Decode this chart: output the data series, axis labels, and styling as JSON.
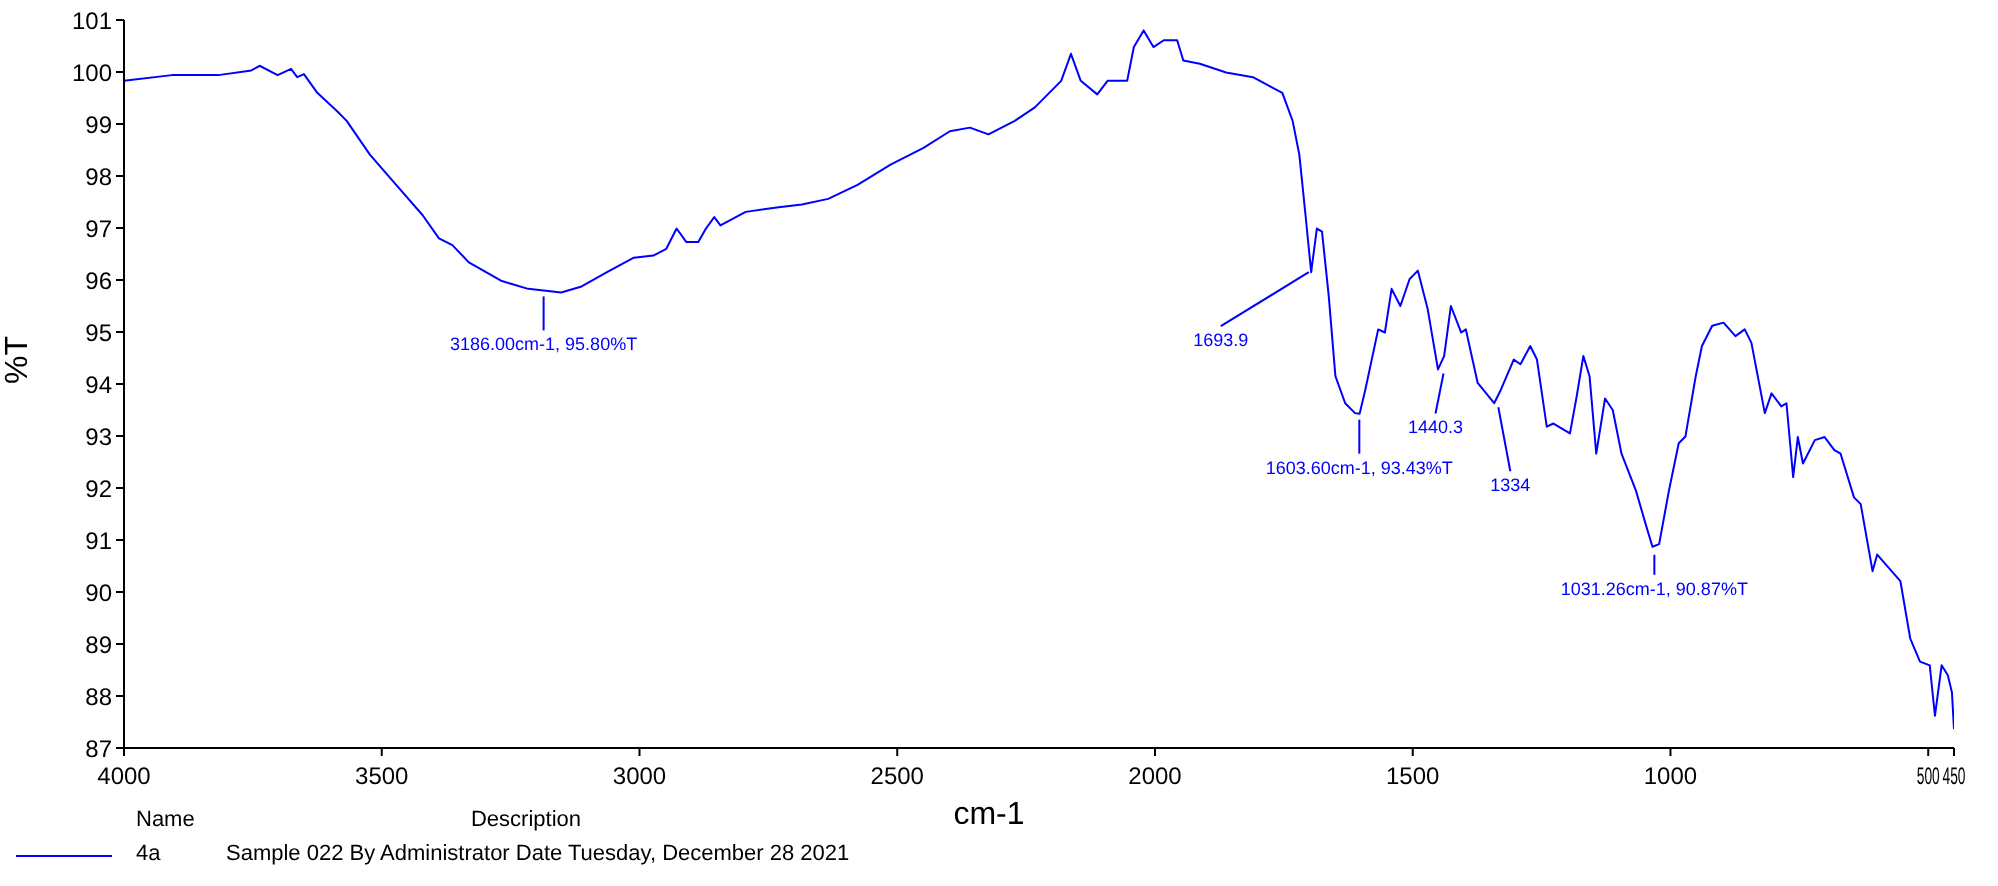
{
  "chart_data": {
    "type": "line",
    "xlabel": "cm-1",
    "ylabel": "%T",
    "xlim": [
      4000,
      450
    ],
    "xticks": [
      4000,
      3500,
      3000,
      2500,
      2000,
      1500,
      1000,
      500,
      450
    ],
    "ylim": [
      87,
      101
    ],
    "yticks": [
      87,
      88,
      89,
      90,
      91,
      92,
      93,
      94,
      95,
      96,
      97,
      98,
      99,
      100,
      101
    ],
    "grid": false,
    "legend": "bottom left",
    "marker": "none",
    "line_style": "solid",
    "x": [
      4000,
      3907,
      3817,
      3753,
      3737,
      3702,
      3676,
      3664,
      3651,
      3625,
      3587,
      3568,
      3523,
      3472,
      3421,
      3389,
      3363,
      3331,
      3267,
      3216,
      3186,
      3152,
      3114,
      3063,
      3011,
      2973,
      2948,
      2928,
      2909,
      2886,
      2871,
      2855,
      2843,
      2794,
      2730,
      2685,
      2634,
      2577,
      2513,
      2449,
      2398,
      2359,
      2323,
      2272,
      2233,
      2208,
      2182,
      2163,
      2144,
      2112,
      2092,
      2054,
      2041,
      2022,
      2003,
      1983,
      1957,
      1945,
      1913,
      1862,
      1810,
      1753,
      1733,
      1720,
      1708,
      1697,
      1686,
      1676,
      1663,
      1650,
      1631,
      1612,
      1603,
      1592,
      1567,
      1554,
      1541,
      1524,
      1506,
      1490,
      1471,
      1451,
      1439,
      1426,
      1406,
      1397,
      1374,
      1342,
      1329,
      1304,
      1291,
      1272,
      1259,
      1240,
      1227,
      1195,
      1182,
      1169,
      1157,
      1144,
      1127,
      1112,
      1095,
      1067,
      1048,
      1035,
      1022,
      1003,
      984,
      971,
      951,
      939,
      919,
      897,
      874,
      856,
      843,
      817,
      804,
      785,
      775,
      762,
      753,
      743,
      720,
      701,
      682,
      670,
      644,
      631,
      608,
      599,
      554,
      535,
      516,
      497,
      487,
      474,
      462,
      454,
      450
    ],
    "series": [
      {
        "name": "4a",
        "color": "#0000ff",
        "values": [
          99.83,
          99.94,
          99.94,
          100.03,
          100.12,
          99.94,
          100.06,
          99.9,
          99.96,
          99.6,
          99.25,
          99.06,
          98.41,
          97.83,
          97.25,
          96.8,
          96.67,
          96.34,
          95.98,
          95.83,
          95.8,
          95.76,
          95.87,
          96.15,
          96.43,
          96.47,
          96.6,
          96.99,
          96.73,
          96.73,
          96.99,
          97.21,
          97.05,
          97.31,
          97.4,
          97.45,
          97.56,
          97.83,
          98.22,
          98.54,
          98.86,
          98.93,
          98.8,
          99.06,
          99.32,
          99.57,
          99.83,
          100.35,
          99.83,
          99.57,
          99.83,
          99.83,
          100.48,
          100.8,
          100.48,
          100.61,
          100.61,
          100.22,
          100.16,
          99.99,
          99.9,
          99.6,
          99.06,
          98.41,
          97.25,
          96.15,
          96.99,
          96.93,
          95.7,
          94.15,
          93.63,
          93.44,
          93.43,
          93.89,
          95.05,
          94.99,
          95.83,
          95.5,
          96.02,
          96.18,
          95.44,
          94.28,
          94.54,
          95.5,
          94.99,
          95.05,
          94.02,
          93.63,
          93.89,
          94.47,
          94.38,
          94.73,
          94.47,
          93.18,
          93.24,
          93.05,
          93.76,
          94.54,
          94.15,
          92.66,
          93.72,
          93.5,
          92.66,
          91.95,
          91.3,
          90.87,
          90.92,
          91.95,
          92.86,
          92.99,
          94.15,
          94.73,
          95.12,
          95.18,
          94.92,
          95.05,
          94.79,
          93.44,
          93.82,
          93.57,
          93.63,
          92.21,
          92.98,
          92.47,
          92.92,
          92.98,
          92.73,
          92.66,
          91.82,
          91.69,
          90.4,
          90.72,
          90.21,
          89.11,
          88.66,
          88.59,
          87.62,
          88.59,
          88.4,
          88.07,
          87.36
        ]
      }
    ],
    "annotations": [
      {
        "text": "3186.00cm-1, 95.80%T",
        "x": 3186,
        "y": 95.8
      },
      {
        "text": "1693.9",
        "x": 1693.9,
        "y": 96.15
      },
      {
        "text": "1603.60cm-1, 93.43%T",
        "x": 1603.6,
        "y": 93.43
      },
      {
        "text": "1440.3",
        "x": 1440.3,
        "y": 94.28
      },
      {
        "text": "1334",
        "x": 1334,
        "y": 93.63
      },
      {
        "text": "1031.26cm-1, 90.87%T",
        "x": 1031.26,
        "y": 90.87
      },
      "Name",
      "Description",
      "Sample 022 By Administrator Date Tuesday, December 28 2021"
    ]
  }
}
